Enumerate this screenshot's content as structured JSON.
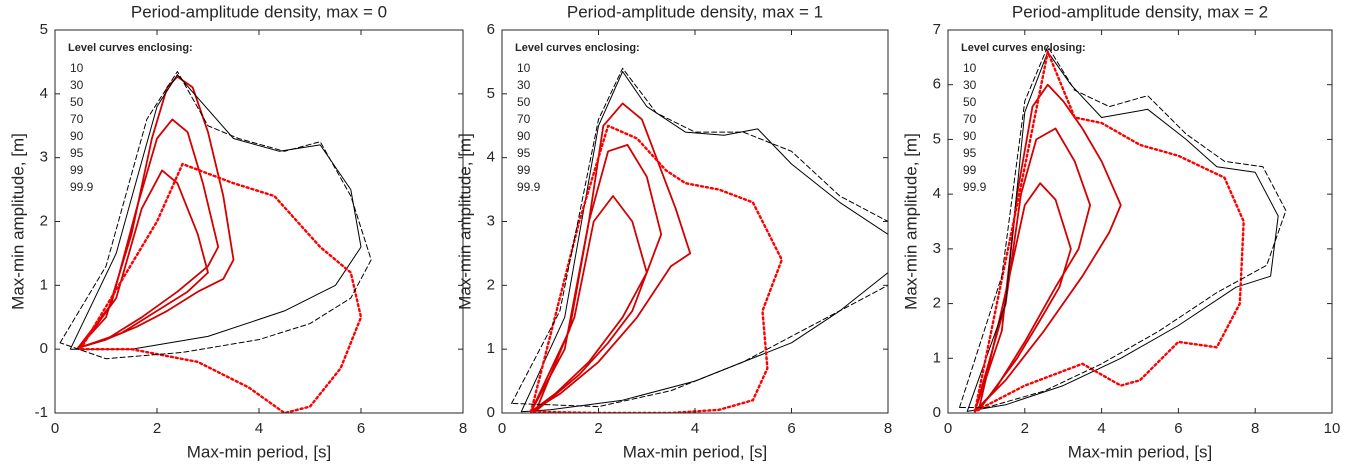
{
  "chart_data": [
    {
      "type": "contour",
      "title": "Period-amplitude density, max = 0",
      "xlabel": "Max-min period, [s]",
      "ylabel": "Max-min amplitude, [m]",
      "xlim": [
        0,
        8
      ],
      "xticks": [
        0,
        2,
        4,
        6,
        8
      ],
      "ylim": [
        -1,
        5
      ],
      "yticks": [
        -1,
        0,
        1,
        2,
        3,
        4,
        5
      ],
      "legend_title": "Level curves enclosing:",
      "levels": [
        10,
        30,
        50,
        70,
        90,
        95,
        99,
        99.9
      ],
      "series": [
        {
          "color": "#d40000",
          "style": "solid",
          "x": [
            0.45,
            1.0,
            1.5,
            1.9,
            2.2,
            2.4,
            2.7,
            3.0,
            3.3,
            3.5,
            3.3,
            2.8,
            2.2,
            1.6,
            1.0,
            0.45
          ],
          "y": [
            0.02,
            0.5,
            1.8,
            3.3,
            4.1,
            4.27,
            4.1,
            3.4,
            2.4,
            1.4,
            1.1,
            0.9,
            0.6,
            0.35,
            0.15,
            0.02
          ]
        },
        {
          "color": "#d40000",
          "style": "solid",
          "x": [
            0.45,
            1.1,
            1.6,
            2.0,
            2.3,
            2.6,
            2.9,
            3.2,
            3.0,
            2.4,
            1.7,
            1.0,
            0.45
          ],
          "y": [
            0.02,
            0.7,
            2.2,
            3.3,
            3.6,
            3.4,
            2.6,
            1.6,
            1.3,
            0.9,
            0.5,
            0.15,
            0.02
          ]
        },
        {
          "color": "#d40000",
          "style": "solid",
          "x": [
            0.5,
            1.2,
            1.7,
            2.1,
            2.4,
            2.8,
            3.0,
            2.6,
            2.0,
            1.3,
            0.5
          ],
          "y": [
            0.03,
            0.8,
            2.2,
            2.8,
            2.6,
            1.8,
            1.2,
            0.9,
            0.6,
            0.25,
            0.03
          ]
        },
        {
          "color": "#000000",
          "style": "solid",
          "x": [
            0.3,
            1.2,
            2.0,
            2.4,
            3.5,
            4.4,
            5.2,
            5.8,
            6.0,
            5.5,
            4.5,
            3.0,
            1.5,
            0.3
          ],
          "y": [
            0.0,
            1.5,
            3.8,
            4.3,
            3.3,
            3.1,
            3.2,
            2.5,
            1.6,
            1.0,
            0.6,
            0.2,
            0.0,
            0.0
          ]
        },
        {
          "color": "#ff0000",
          "style": "dotted",
          "x": [
            0.5,
            2.0,
            2.5,
            3.5,
            4.3,
            5.2,
            5.8,
            6.0,
            5.6,
            5.0,
            4.5,
            3.8,
            2.8,
            1.5,
            0.5
          ],
          "y": [
            0,
            2,
            2.9,
            2.6,
            2.4,
            1.6,
            1.2,
            0.5,
            -0.3,
            -0.9,
            -1.0,
            -0.6,
            -0.2,
            0,
            0
          ]
        },
        {
          "color": "#000000",
          "style": "dashed",
          "x": [
            0.1,
            1.0,
            1.8,
            2.4,
            3.0,
            3.6,
            4.5,
            5.2,
            5.8,
            6.2,
            5.8,
            5.0,
            4.0,
            2.5,
            1.0,
            0.1
          ],
          "y": [
            0.1,
            1.3,
            3.6,
            4.35,
            3.5,
            3.3,
            3.1,
            3.25,
            2.4,
            1.4,
            0.8,
            0.4,
            0.15,
            -0.05,
            -0.15,
            0.1
          ]
        }
      ]
    },
    {
      "type": "contour",
      "title": "Period-amplitude density, max = 1",
      "xlabel": "Max-min period, [s]",
      "ylabel": "Max-min amplitude, [m]",
      "xlim": [
        0,
        8
      ],
      "xticks": [
        0,
        2,
        4,
        6,
        8
      ],
      "ylim": [
        0,
        6
      ],
      "yticks": [
        0,
        1,
        2,
        3,
        4,
        5,
        6
      ],
      "legend_title": "Level curves enclosing:",
      "levels": [
        10,
        30,
        50,
        70,
        90,
        95,
        99,
        99.9
      ],
      "series": [
        {
          "color": "#d40000",
          "style": "solid",
          "x": [
            0.6,
            1.3,
            1.8,
            2.1,
            2.5,
            2.9,
            3.3,
            3.6,
            3.9,
            3.5,
            2.8,
            2.0,
            1.2,
            0.6
          ],
          "y": [
            0.02,
            1.0,
            3.0,
            4.5,
            4.85,
            4.6,
            3.8,
            3.2,
            2.5,
            2.3,
            1.5,
            0.8,
            0.3,
            0.02
          ]
        },
        {
          "color": "#d40000",
          "style": "solid",
          "x": [
            0.6,
            1.4,
            1.8,
            2.2,
            2.6,
            3.0,
            3.3,
            3.0,
            2.5,
            1.8,
            1.1,
            0.6
          ],
          "y": [
            0.02,
            1.3,
            3.0,
            4.1,
            4.2,
            3.7,
            2.8,
            2.2,
            1.5,
            0.8,
            0.3,
            0.02
          ]
        },
        {
          "color": "#d40000",
          "style": "solid",
          "x": [
            0.7,
            1.5,
            1.9,
            2.3,
            2.7,
            3.0,
            2.7,
            2.2,
            1.6,
            0.7
          ],
          "y": [
            0.03,
            1.5,
            3.0,
            3.4,
            3.0,
            2.2,
            1.6,
            1.1,
            0.6,
            0.03
          ]
        },
        {
          "color": "#000000",
          "style": "solid",
          "x": [
            0.4,
            1.3,
            2.0,
            2.5,
            3.0,
            3.8,
            4.6,
            5.3,
            6.0,
            7.0,
            8.0,
            8.0,
            7.0,
            6.0,
            5.0,
            4.0,
            2.5,
            1.0,
            0.4
          ],
          "y": [
            0.02,
            1.5,
            4.5,
            5.35,
            4.8,
            4.4,
            4.35,
            4.45,
            3.9,
            3.3,
            2.8,
            2.2,
            1.6,
            1.1,
            0.8,
            0.5,
            0.2,
            0.05,
            0.02
          ]
        },
        {
          "color": "#ff0000",
          "style": "dotted",
          "x": [
            0.6,
            1.6,
            2.2,
            2.8,
            3.4,
            3.8,
            4.5,
            5.2,
            5.8,
            5.4,
            5.5,
            5.2,
            4.5,
            3.5,
            2.0,
            0.6
          ],
          "y": [
            0.02,
            3.0,
            4.5,
            4.3,
            3.8,
            3.6,
            3.5,
            3.3,
            2.4,
            1.6,
            0.7,
            0.2,
            0.05,
            0.0,
            0.0,
            0.02
          ]
        },
        {
          "color": "#000000",
          "style": "dashed",
          "x": [
            0.2,
            1.2,
            2.0,
            2.5,
            3.2,
            4.0,
            5.0,
            6.0,
            7.0,
            8.0,
            8.0,
            6.5,
            5.0,
            3.5,
            2.0,
            0.2
          ],
          "y": [
            0.15,
            1.6,
            4.6,
            5.4,
            4.7,
            4.4,
            4.4,
            4.1,
            3.4,
            3.0,
            2.0,
            1.4,
            0.8,
            0.35,
            0.1,
            0.15
          ]
        }
      ]
    },
    {
      "type": "contour",
      "title": "Period-amplitude density, max = 2",
      "xlabel": "Max-min period, [s]",
      "ylabel": "Max-min amplitude, [m]",
      "xlim": [
        0,
        10
      ],
      "xticks": [
        0,
        2,
        4,
        6,
        8,
        10
      ],
      "ylim": [
        0,
        7
      ],
      "yticks": [
        0,
        1,
        2,
        3,
        4,
        5,
        6,
        7
      ],
      "legend_title": "Level curves enclosing:",
      "levels": [
        10,
        30,
        50,
        70,
        90,
        95,
        99,
        99.9
      ],
      "series": [
        {
          "color": "#d40000",
          "style": "solid",
          "x": [
            0.7,
            1.4,
            1.8,
            2.2,
            2.6,
            3.0,
            3.5,
            4.0,
            4.5,
            4.2,
            3.5,
            2.5,
            1.5,
            0.7
          ],
          "y": [
            0.03,
            1.5,
            4.0,
            5.6,
            6.0,
            5.7,
            5.2,
            4.6,
            3.8,
            3.3,
            2.5,
            1.5,
            0.6,
            0.03
          ]
        },
        {
          "color": "#d40000",
          "style": "solid",
          "x": [
            0.7,
            1.5,
            1.9,
            2.3,
            2.8,
            3.3,
            3.7,
            3.4,
            2.8,
            2.0,
            1.2,
            0.7
          ],
          "y": [
            0.03,
            2.0,
            4.0,
            5.0,
            5.2,
            4.6,
            3.8,
            3.0,
            2.3,
            1.3,
            0.4,
            0.03
          ]
        },
        {
          "color": "#d40000",
          "style": "solid",
          "x": [
            0.8,
            1.6,
            2.0,
            2.4,
            2.8,
            3.2,
            2.9,
            2.4,
            1.8,
            0.8
          ],
          "y": [
            0.05,
            2.5,
            3.8,
            4.2,
            3.9,
            3.0,
            2.3,
            1.7,
            1.0,
            0.05
          ]
        },
        {
          "color": "#000000",
          "style": "solid",
          "x": [
            0.5,
            1.5,
            2.0,
            2.6,
            3.2,
            4.0,
            5.2,
            6.2,
            7.0,
            8.0,
            8.6,
            8.4,
            7.5,
            6.0,
            4.5,
            3.0,
            1.5,
            0.5
          ],
          "y": [
            0.03,
            2.0,
            5.5,
            6.6,
            6.0,
            5.4,
            5.55,
            5.0,
            4.5,
            4.4,
            3.6,
            2.5,
            2.3,
            1.6,
            1.0,
            0.5,
            0.15,
            0.03
          ]
        },
        {
          "color": "#ff0000",
          "style": "dotted",
          "x": [
            0.7,
            2.0,
            2.6,
            3.3,
            4.0,
            5.0,
            6.0,
            7.2,
            7.7,
            7.6,
            7.0,
            6.0,
            5.0,
            4.5,
            3.5,
            2.0,
            0.7
          ],
          "y": [
            0.03,
            4.5,
            6.6,
            5.4,
            5.3,
            4.9,
            4.7,
            4.3,
            3.5,
            2.0,
            1.2,
            1.3,
            0.6,
            0.5,
            0.9,
            0.5,
            0.03
          ]
        },
        {
          "color": "#000000",
          "style": "dashed",
          "x": [
            0.3,
            1.4,
            2.0,
            2.6,
            3.3,
            4.2,
            5.2,
            6.2,
            7.2,
            8.2,
            8.8,
            8.3,
            7.0,
            5.5,
            4.0,
            2.5,
            1.0,
            0.3
          ],
          "y": [
            0.1,
            2.5,
            5.7,
            6.7,
            5.9,
            5.6,
            5.8,
            5.1,
            4.6,
            4.5,
            3.7,
            2.7,
            2.2,
            1.5,
            0.9,
            0.4,
            0.1,
            0.1
          ]
        }
      ]
    }
  ]
}
